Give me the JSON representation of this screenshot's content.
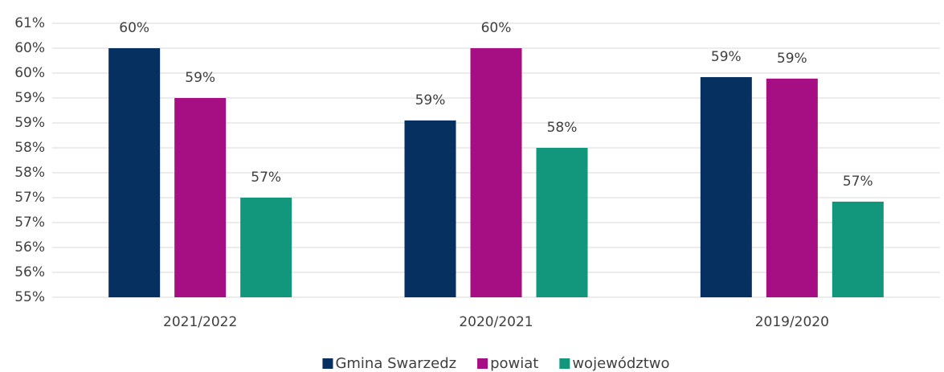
{
  "chart_data": {
    "type": "bar",
    "categories": [
      "2021/2022",
      "2020/2021",
      "2019/2020"
    ],
    "series": [
      {
        "name": "Gmina Swarzedz",
        "color": "#06305f",
        "values": [
          60.0,
          58.55,
          59.42
        ],
        "value_labels": [
          "60%",
          "59%",
          "59%"
        ]
      },
      {
        "name": "powiat",
        "color": "#a50f83",
        "values": [
          59.0,
          60.0,
          59.39
        ],
        "value_labels": [
          "59%",
          "60%",
          "59%"
        ]
      },
      {
        "name": "województwo",
        "color": "#12977c",
        "values": [
          57.0,
          58.0,
          56.92
        ],
        "value_labels": [
          "57%",
          "58%",
          "57%"
        ]
      }
    ],
    "ylim": [
      55,
      60.5
    ],
    "yticks": [
      {
        "value": 55,
        "label": "55%"
      },
      {
        "value": 55.5,
        "label": "56%"
      },
      {
        "value": 56,
        "label": "56%"
      },
      {
        "value": 56.5,
        "label": "57%"
      },
      {
        "value": 57,
        "label": "57%"
      },
      {
        "value": 57.5,
        "label": "58%"
      },
      {
        "value": 58,
        "label": "58%"
      },
      {
        "value": 58.5,
        "label": "59%"
      },
      {
        "value": 59,
        "label": "59%"
      },
      {
        "value": 59.5,
        "label": "60%"
      },
      {
        "value": 60,
        "label": "60%"
      },
      {
        "value": 60.5,
        "label": "61%"
      }
    ],
    "grid": true,
    "legend": "bottom"
  }
}
